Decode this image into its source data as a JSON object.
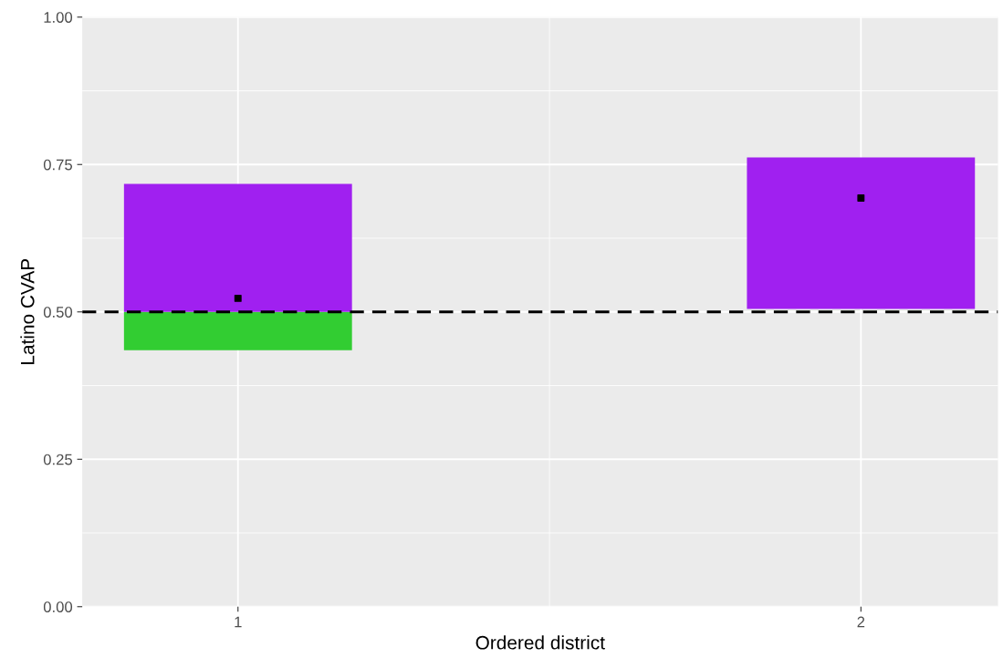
{
  "chart_data": {
    "type": "bar",
    "xlabel": "Ordered district",
    "ylabel": "Latino CVAP",
    "categories": [
      "1",
      "2"
    ],
    "ylim": [
      0,
      1
    ],
    "yticks": [
      {
        "value": 0,
        "label": "0.00"
      },
      {
        "value": 0.25,
        "label": "0.25"
      },
      {
        "value": 0.5,
        "label": "0.50"
      },
      {
        "value": 0.75,
        "label": "0.75"
      },
      {
        "value": 1,
        "label": "1.00"
      }
    ],
    "grid": true,
    "series": [
      {
        "color": "#32cd32",
        "base": [
          0.435,
          null
        ],
        "values": [
          0.065,
          null
        ]
      },
      {
        "color": "#a020f0",
        "base": [
          0.5,
          0.505
        ],
        "values": [
          0.217,
          0.257
        ]
      },
      {
        "type": "scatter",
        "color": "#000000",
        "marker": "square",
        "values": [
          0.523,
          0.693
        ]
      }
    ],
    "ref_lines": [
      {
        "axis": "y",
        "value": 0.5,
        "color": "#000000",
        "line_style": "dashed"
      }
    ]
  }
}
